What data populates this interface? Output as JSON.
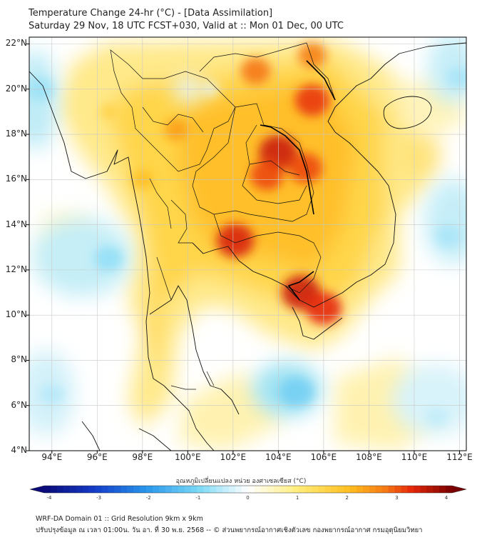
{
  "header": {
    "title": "Temperature Change 24-hr (°C) - [Data Assimilation]",
    "subtitle": "Saturday 29 Nov, 18 UTC FCST+030, Valid at :: Mon 01 Dec, 00 UTC"
  },
  "map": {
    "lat_labels": [
      "22°N",
      "20°N",
      "18°N",
      "16°N",
      "14°N",
      "12°N",
      "10°N",
      "8°N",
      "6°N",
      "4°N"
    ],
    "lon_labels": [
      "94°E",
      "96°E",
      "98°E",
      "100°E",
      "102°E",
      "104°E",
      "106°E",
      "108°E",
      "110°E",
      "112°E"
    ],
    "lat_range": [
      4,
      22.3
    ],
    "lon_range": [
      93,
      112.3
    ],
    "field": "24-hr temperature change (°C)",
    "hotspots": [
      {
        "lon": 104.0,
        "lat": 17.2,
        "value": 3.4
      },
      {
        "lon": 103.5,
        "lat": 16.2,
        "value": 3.0
      },
      {
        "lon": 105.2,
        "lat": 16.5,
        "value": 3.0
      },
      {
        "lon": 105.0,
        "lat": 11.0,
        "value": 3.4
      },
      {
        "lon": 106.0,
        "lat": 10.3,
        "value": 3.2
      },
      {
        "lon": 102.1,
        "lat": 13.3,
        "value": 3.3
      },
      {
        "lon": 105.5,
        "lat": 19.5,
        "value": 3.1
      },
      {
        "lon": 103.0,
        "lat": 20.8,
        "value": 2.7
      },
      {
        "lon": 105.5,
        "lat": 21.5,
        "value": 2.6
      },
      {
        "lon": 99.5,
        "lat": 18.2,
        "value": 2.3
      },
      {
        "lon": 98.0,
        "lat": 16.0,
        "value": 2.0
      },
      {
        "lon": 96.5,
        "lat": 19.0,
        "value": 1.6
      }
    ],
    "coldspots": [
      {
        "lon": 104.8,
        "lat": 6.6,
        "value": -1.2
      },
      {
        "lon": 96.5,
        "lat": 12.5,
        "value": -0.9
      },
      {
        "lon": 93.5,
        "lat": 20.0,
        "value": -0.8
      },
      {
        "lon": 111.5,
        "lat": 13.5,
        "value": -0.7
      },
      {
        "lon": 112.0,
        "lat": 20.5,
        "value": -0.7
      },
      {
        "lon": 111.0,
        "lat": 5.5,
        "value": -0.5
      },
      {
        "lon": 94.0,
        "lat": 6.5,
        "value": -0.6
      },
      {
        "lon": 101.0,
        "lat": 20.0,
        "value": -0.2
      }
    ]
  },
  "colorbar": {
    "title": "อุณหภูมิเปลี่ยนแปลง หน่วย องศาเซลเซียส (°C)",
    "ticks": [
      "-4",
      "-3",
      "-2",
      "-1",
      "0",
      "1",
      "2",
      "3",
      "4"
    ],
    "min": -4,
    "max": 4
  },
  "footer": {
    "line1": "WRF-DA Domain 01 :: Grid Resolution 9km x 9km",
    "line2": "ปรับปรุงข้อมูล ณ เวลา 01:00น. วัน อา. ที่ 30 พ.ย. 2568 -- © ส่วนพยากรณ์อากาศเชิงตัวเลข กองพยากรณ์อากาศ กรมอุตุนิยมวิทยา"
  },
  "colors": {
    "cold": "#7fdbef",
    "neutral": "#ffffff",
    "warm": "#ffd23a",
    "hot": "#e8200a",
    "border": "#111111"
  }
}
